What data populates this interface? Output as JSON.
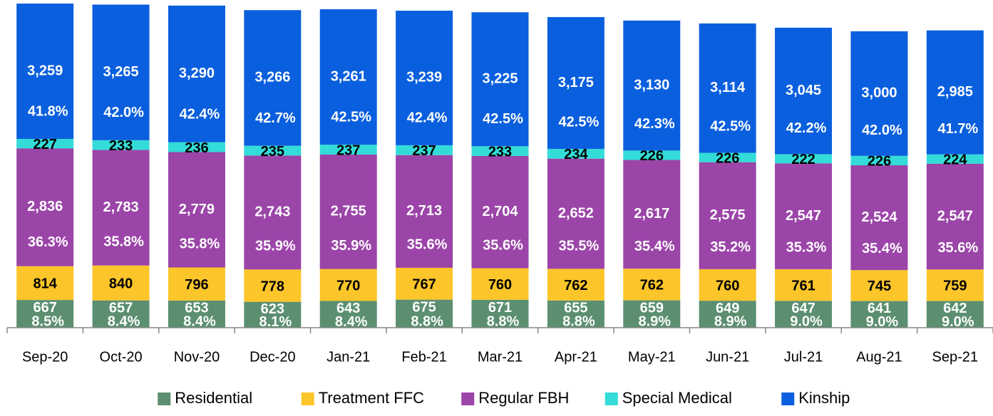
{
  "chart_data": {
    "type": "stacked-bar",
    "categories": [
      "Sep-20",
      "Oct-20",
      "Nov-20",
      "Dec-20",
      "Jan-21",
      "Feb-21",
      "Mar-21",
      "Apr-21",
      "May-21",
      "Jun-21",
      "Jul-21",
      "Aug-21",
      "Sep-21"
    ],
    "series": [
      {
        "name": "Residential",
        "color": "#5b8f70",
        "values": [
          667,
          657,
          653,
          623,
          643,
          675,
          671,
          655,
          659,
          649,
          647,
          641,
          642
        ],
        "value_labels": [
          "667",
          "657",
          "653",
          "623",
          "643",
          "675",
          "671",
          "655",
          "659",
          "649",
          "647",
          "641",
          "642"
        ],
        "percent_labels": [
          "8.5%",
          "8.4%",
          "8.4%",
          "8.1%",
          "8.4%",
          "8.8%",
          "8.8%",
          "8.8%",
          "8.9%",
          "8.9%",
          "9.0%",
          "9.0%",
          "9.0%"
        ],
        "label_color": "#ffffff"
      },
      {
        "name": "Treatment FFC",
        "color": "#fcc52a",
        "values": [
          814,
          840,
          796,
          778,
          770,
          767,
          760,
          762,
          762,
          760,
          761,
          745,
          759
        ],
        "label_color": "#000000"
      },
      {
        "name": "Regular FBH",
        "color": "#9b45a8",
        "values": [
          2836,
          2783,
          2779,
          2743,
          2755,
          2713,
          2704,
          2652,
          2617,
          2575,
          2547,
          2524,
          2547
        ],
        "value_labels": [
          "2,836",
          "2,783",
          "2,779",
          "2,743",
          "2,755",
          "2,713",
          "2,704",
          "2,652",
          "2,617",
          "2,575",
          "2,547",
          "2,524",
          "2,547"
        ],
        "percent_labels": [
          "36.3%",
          "35.8%",
          "35.8%",
          "35.9%",
          "35.9%",
          "35.6%",
          "35.6%",
          "35.5%",
          "35.4%",
          "35.2%",
          "35.3%",
          "35.4%",
          "35.6%"
        ],
        "label_color": "#ffffff"
      },
      {
        "name": "Special Medical",
        "color": "#33dcd8",
        "values": [
          227,
          233,
          236,
          235,
          237,
          237,
          233,
          234,
          226,
          226,
          222,
          226,
          224
        ],
        "label_color": "#000000"
      },
      {
        "name": "Kinship",
        "color": "#0a5fde",
        "values": [
          3259,
          3265,
          3290,
          3266,
          3261,
          3239,
          3225,
          3175,
          3130,
          3114,
          3045,
          3000,
          2985
        ],
        "value_labels": [
          "3,259",
          "3,265",
          "3,290",
          "3,266",
          "3,261",
          "3,239",
          "3,225",
          "3,175",
          "3,130",
          "3,114",
          "3,045",
          "3,000",
          "2,985"
        ],
        "percent_labels": [
          "41.8%",
          "42.0%",
          "42.4%",
          "42.7%",
          "42.5%",
          "42.4%",
          "42.5%",
          "42.5%",
          "42.3%",
          "42.5%",
          "42.2%",
          "42.0%",
          "41.7%"
        ],
        "label_color": "#ffffff"
      }
    ],
    "legend": "bottom"
  }
}
